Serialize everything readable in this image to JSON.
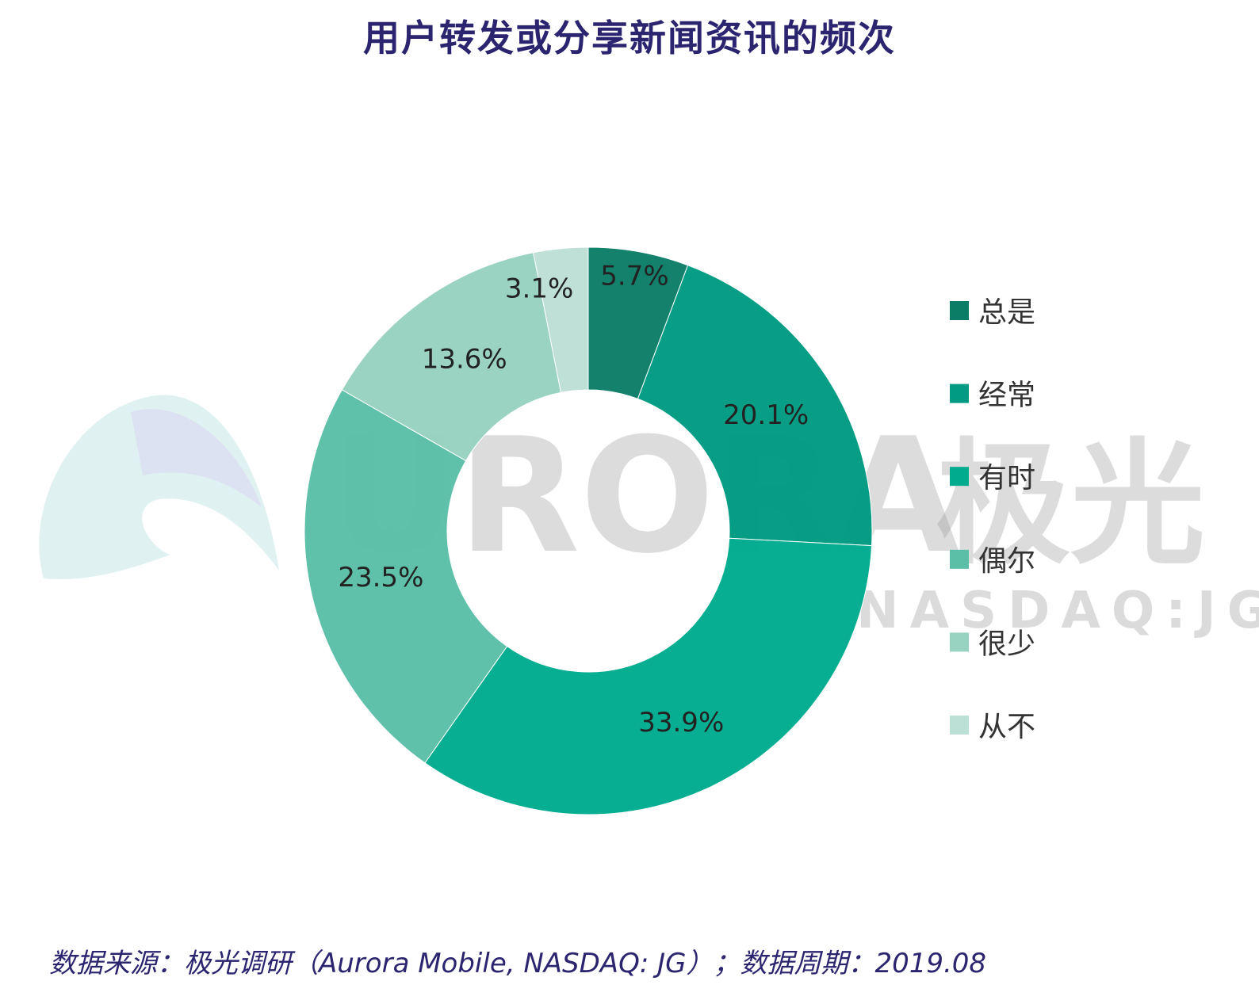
{
  "title": "用户转发或分享新闻资讯的频次",
  "source": "数据来源：极光调研（Aurora Mobile, NASDAQ: JG）；数据周期：2019.08",
  "watermark": {
    "brand": "URORA",
    "cn": "极光",
    "ticker": "NASDAQ:JG"
  },
  "chart_data": {
    "type": "pie",
    "variant": "donut",
    "title": "用户转发或分享新闻资讯的频次",
    "legend_position": "right",
    "unit": "%",
    "slices": [
      {
        "label": "总是",
        "value": 5.7,
        "display": "5.7%",
        "color": "#0b7d67"
      },
      {
        "label": "经常",
        "value": 20.1,
        "display": "20.1%",
        "color": "#009b82"
      },
      {
        "label": "有时",
        "value": 33.9,
        "display": "33.9%",
        "color": "#00ab8e"
      },
      {
        "label": "偶尔",
        "value": 23.5,
        "display": "23.5%",
        "color": "#5bbfa7"
      },
      {
        "label": "很少",
        "value": 13.6,
        "display": "13.6%",
        "color": "#98d2c0"
      },
      {
        "label": "从不",
        "value": 3.1,
        "display": "3.1%",
        "color": "#bcdfd6"
      }
    ]
  }
}
